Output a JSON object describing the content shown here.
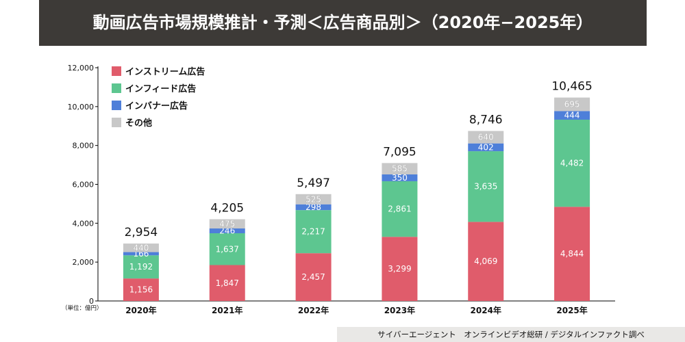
{
  "title": "動画広告市場規模推計・予測＜広告商品別＞（2020年−2025年）",
  "unit_note": "（単位：億円）",
  "source": "サイバーエージェント　オンラインビデオ総研 / デジタルインファクト調べ",
  "colors": {
    "stream": "#e05c6b",
    "infeed": "#5dc690",
    "banner": "#4e7fd9",
    "other": "#c8c8c8"
  },
  "chart_data": {
    "type": "bar",
    "stacked": true,
    "categories": [
      "2020年",
      "2021年",
      "2022年",
      "2023年",
      "2024年",
      "2025年"
    ],
    "series": [
      {
        "name": "インストリーム広告",
        "color": "#e05c6b",
        "values": [
          1156,
          1847,
          2457,
          3299,
          4069,
          4844
        ]
      },
      {
        "name": "インフィード広告",
        "color": "#5dc690",
        "values": [
          1192,
          1637,
          2217,
          2861,
          3635,
          4482
        ]
      },
      {
        "name": "インバナー広告",
        "color": "#4e7fd9",
        "values": [
          166,
          246,
          298,
          350,
          402,
          444
        ]
      },
      {
        "name": "その他",
        "color": "#c8c8c8",
        "values": [
          440,
          475,
          525,
          585,
          640,
          695
        ]
      }
    ],
    "totals": [
      "2,954",
      "4,205",
      "5,497",
      "7,095",
      "8,746",
      "10,465"
    ],
    "yticks": [
      "0",
      "2,000",
      "4,000",
      "6,000",
      "8,000",
      "10,000",
      "12,000"
    ],
    "ylim": [
      0,
      12000
    ],
    "legend_position": "top-left",
    "grid": false
  }
}
